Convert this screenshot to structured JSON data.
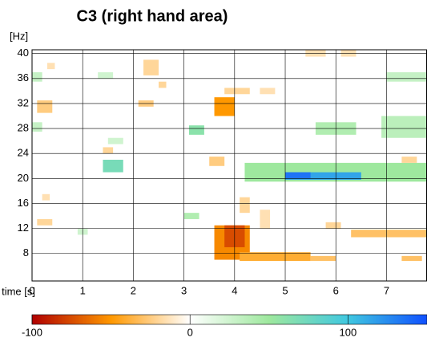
{
  "chart_data": {
    "type": "heatmap",
    "title": "C3 (right hand area)",
    "y_label": "[Hz]",
    "x_label": "time [s]",
    "xlim": [
      0,
      7.8
    ],
    "xticks": [
      0,
      1,
      2,
      3,
      4,
      5,
      6,
      7
    ],
    "ylim": [
      3.6,
      40.6
    ],
    "yticks": [
      8,
      12,
      16,
      20,
      24,
      28,
      32,
      36,
      40
    ],
    "grid": true,
    "clim": [
      -100,
      150
    ],
    "colorbar_ticks": [
      -100,
      0,
      100
    ],
    "colormap": [
      "#b00000",
      "#ff9800",
      "#ffffff",
      "#9ee89e",
      "#40c8e0",
      "#1050ff"
    ],
    "cells": [
      {
        "t": [
          3.6,
          4.3
        ],
        "f": [
          7,
          12.5
        ],
        "value": -55
      },
      {
        "t": [
          3.8,
          4.2
        ],
        "f": [
          9,
          12.5
        ],
        "value": -75
      },
      {
        "t": [
          4.1,
          5.5
        ],
        "f": [
          6.8,
          8.2
        ],
        "value": -40
      },
      {
        "t": [
          5.5,
          6.0
        ],
        "f": [
          6.8,
          7.6
        ],
        "value": -30
      },
      {
        "t": [
          6.3,
          7.8
        ],
        "f": [
          10.6,
          11.8
        ],
        "value": -30
      },
      {
        "t": [
          7.3,
          7.7
        ],
        "f": [
          6.8,
          7.6
        ],
        "value": -30
      },
      {
        "t": [
          3.6,
          4.0
        ],
        "f": [
          30,
          33
        ],
        "value": -50
      },
      {
        "t": [
          4.2,
          7.8
        ],
        "f": [
          19.5,
          22.5
        ],
        "value": 50
      },
      {
        "t": [
          5.0,
          6.5
        ],
        "f": [
          19.8,
          21
        ],
        "value": 115
      },
      {
        "t": [
          5.0,
          5.5
        ],
        "f": [
          20,
          21
        ],
        "value": 135
      },
      {
        "t": [
          7.2,
          7.8
        ],
        "f": [
          27.5,
          29
        ],
        "value": 85
      },
      {
        "t": [
          6.9,
          7.8
        ],
        "f": [
          26.5,
          30
        ],
        "value": 35
      },
      {
        "t": [
          5.6,
          6.4
        ],
        "f": [
          27,
          29
        ],
        "value": 40
      },
      {
        "t": [
          3.1,
          3.4
        ],
        "f": [
          27,
          28.5
        ],
        "value": 60
      },
      {
        "t": [
          1.4,
          1.8
        ],
        "f": [
          21,
          23
        ],
        "value": 70
      },
      {
        "t": [
          7.0,
          7.8
        ],
        "f": [
          35.5,
          37
        ],
        "value": 30
      },
      {
        "t": [
          1.3,
          1.6
        ],
        "f": [
          36,
          37
        ],
        "value": 25
      },
      {
        "t": [
          0,
          0.2
        ],
        "f": [
          27.5,
          29
        ],
        "value": 30
      },
      {
        "t": [
          0,
          0.2
        ],
        "f": [
          35.5,
          37
        ],
        "value": 30
      },
      {
        "t": [
          3.0,
          3.3
        ],
        "f": [
          13.5,
          14.5
        ],
        "value": 40
      },
      {
        "t": [
          1.5,
          1.8
        ],
        "f": [
          25.5,
          26.5
        ],
        "value": 25
      },
      {
        "t": [
          0.9,
          1.1
        ],
        "f": [
          11,
          12
        ],
        "value": 25
      },
      {
        "t": [
          0.1,
          0.4
        ],
        "f": [
          12.5,
          13.5
        ],
        "value": -20
      },
      {
        "t": [
          0.1,
          0.4
        ],
        "f": [
          30.5,
          32.5
        ],
        "value": -25
      },
      {
        "t": [
          0.3,
          0.45
        ],
        "f": [
          37.5,
          38.5
        ],
        "value": -15
      },
      {
        "t": [
          2.2,
          2.5
        ],
        "f": [
          36.5,
          39
        ],
        "value": -20
      },
      {
        "t": [
          2.1,
          2.4
        ],
        "f": [
          31.5,
          32.5
        ],
        "value": -25
      },
      {
        "t": [
          2.5,
          2.65
        ],
        "f": [
          34.5,
          35.5
        ],
        "value": -20
      },
      {
        "t": [
          3.8,
          4.3
        ],
        "f": [
          33.5,
          34.5
        ],
        "value": -20
      },
      {
        "t": [
          4.5,
          4.8
        ],
        "f": [
          33.5,
          34.5
        ],
        "value": -15
      },
      {
        "t": [
          5.4,
          5.8
        ],
        "f": [
          39.5,
          40.6
        ],
        "value": -15
      },
      {
        "t": [
          6.1,
          6.4
        ],
        "f": [
          39.5,
          40.6
        ],
        "value": -15
      },
      {
        "t": [
          7.3,
          7.6
        ],
        "f": [
          22.5,
          23.5
        ],
        "value": -20
      },
      {
        "t": [
          3.5,
          3.8
        ],
        "f": [
          22,
          23.5
        ],
        "value": -25
      },
      {
        "t": [
          1.4,
          1.6
        ],
        "f": [
          24,
          25
        ],
        "value": -20
      },
      {
        "t": [
          4.1,
          4.3
        ],
        "f": [
          14.5,
          17
        ],
        "value": -20
      },
      {
        "t": [
          4.5,
          4.7
        ],
        "f": [
          12,
          15
        ],
        "value": -15
      },
      {
        "t": [
          5.8,
          6.1
        ],
        "f": [
          12,
          13
        ],
        "value": -20
      },
      {
        "t": [
          0.2,
          0.35
        ],
        "f": [
          16.5,
          17.5
        ],
        "value": -15
      }
    ]
  }
}
